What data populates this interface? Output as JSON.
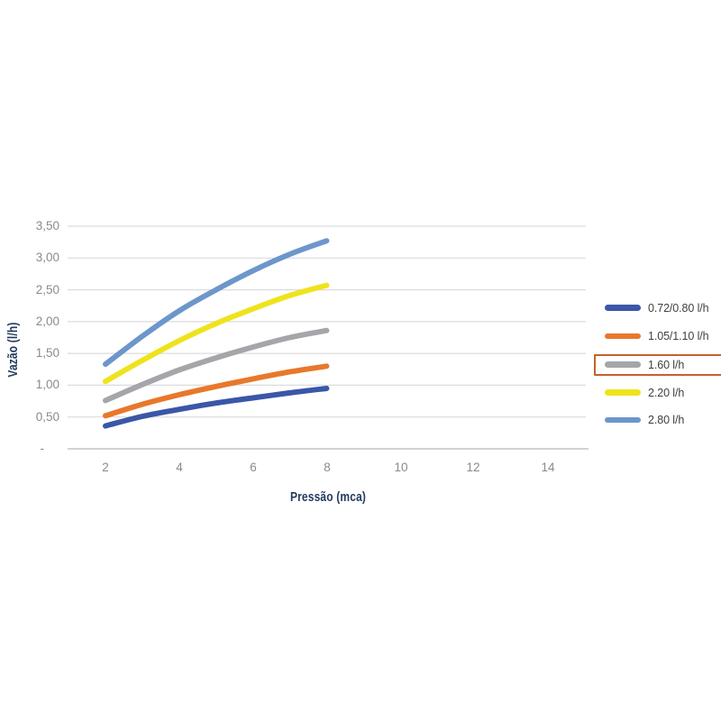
{
  "page": {
    "background": "#ffffff"
  },
  "chart_data": {
    "type": "line",
    "title": "",
    "xlabel": "Pressão (mca)",
    "ylabel": "Vazão (l/h)",
    "x": [
      2,
      4,
      6,
      8,
      10,
      12,
      14
    ],
    "xticks": [
      "2",
      "4",
      "6",
      "8",
      "10",
      "12",
      "14"
    ],
    "yticks": [
      "3,50",
      "3,00",
      "2,50",
      "2,00",
      "1,50",
      "1,00",
      "0,50",
      "-"
    ],
    "ytick_values": [
      3.5,
      3.0,
      2.5,
      2.0,
      1.5,
      1.0,
      0.5,
      0
    ],
    "ylim": [
      0,
      3.5
    ],
    "grid": true,
    "smooth_lines": true,
    "legend_position": "right",
    "series": [
      {
        "name": "0.72/0.80 l/h",
        "color": "#3a57a8",
        "values": [
          0.36,
          0.51,
          0.62,
          0.72,
          0.8,
          0.88,
          0.95
        ]
      },
      {
        "name": "1.05/1.10 l/h",
        "color": "#e8782b",
        "values": [
          0.52,
          0.7,
          0.85,
          0.98,
          1.1,
          1.21,
          1.3
        ]
      },
      {
        "name": "1.60 l/h",
        "color": "#a5a6a9",
        "values": [
          0.76,
          1.01,
          1.24,
          1.43,
          1.6,
          1.75,
          1.86
        ],
        "highlighted": true
      },
      {
        "name": "2.20 l/h",
        "color": "#efe31d",
        "values": [
          1.06,
          1.39,
          1.7,
          1.97,
          2.2,
          2.41,
          2.57
        ]
      },
      {
        "name": "2.80 l/h",
        "color": "#6d96cb",
        "values": [
          1.33,
          1.77,
          2.17,
          2.5,
          2.8,
          3.06,
          3.27
        ]
      }
    ],
    "highlight": {
      "series": "1.60 l/h",
      "border_color": "#c4622c"
    }
  },
  "colors": {
    "gridline": "#dcdcdc",
    "axis_line": "#c4c4c4",
    "tick_label": "#8a8a8a",
    "axis_title": "#233a60",
    "legend_text": "#404040"
  }
}
